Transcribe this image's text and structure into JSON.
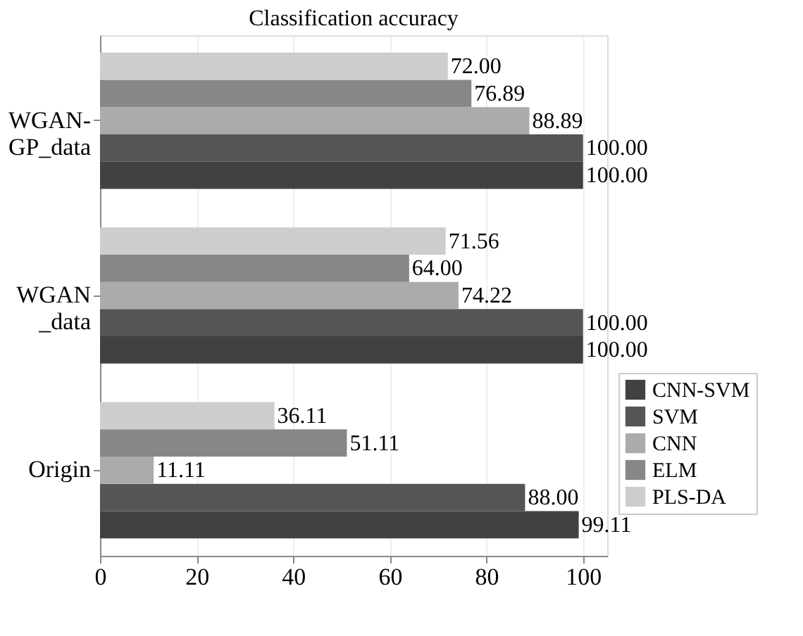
{
  "chart_data": {
    "type": "bar",
    "orientation": "horizontal",
    "title": "Classification accuracy",
    "categories": [
      "WGAN-\nGP_data",
      "WGAN\n_data",
      "Origin"
    ],
    "series": [
      {
        "name": "CNN-SVM",
        "color": "#414141",
        "values": [
          100,
          100,
          99.11
        ],
        "value_labels": [
          "100.00",
          "100.00",
          "99.11"
        ]
      },
      {
        "name": "SVM",
        "color": "#555555",
        "values": [
          100,
          100,
          88
        ],
        "value_labels": [
          "100.00",
          "100.00",
          "88.00"
        ]
      },
      {
        "name": "CNN",
        "color": "#ababab",
        "values": [
          88.89,
          74.22,
          11.11
        ],
        "value_labels": [
          "88.89",
          "74.22",
          "11.11"
        ]
      },
      {
        "name": "ELM",
        "color": "#878787",
        "values": [
          76.89,
          64,
          51.11
        ],
        "value_labels": [
          "76.89",
          "64.00",
          "51.11"
        ]
      },
      {
        "name": "PLS-DA",
        "color": "#cdcdcd",
        "values": [
          72,
          71.56,
          36.11
        ],
        "value_labels": [
          "72.00",
          "71.56",
          "36.11"
        ]
      }
    ],
    "xlim": [
      0,
      105
    ],
    "xticks": [
      0,
      20,
      40,
      60,
      80,
      100
    ],
    "grid": "x",
    "legend": "right"
  }
}
